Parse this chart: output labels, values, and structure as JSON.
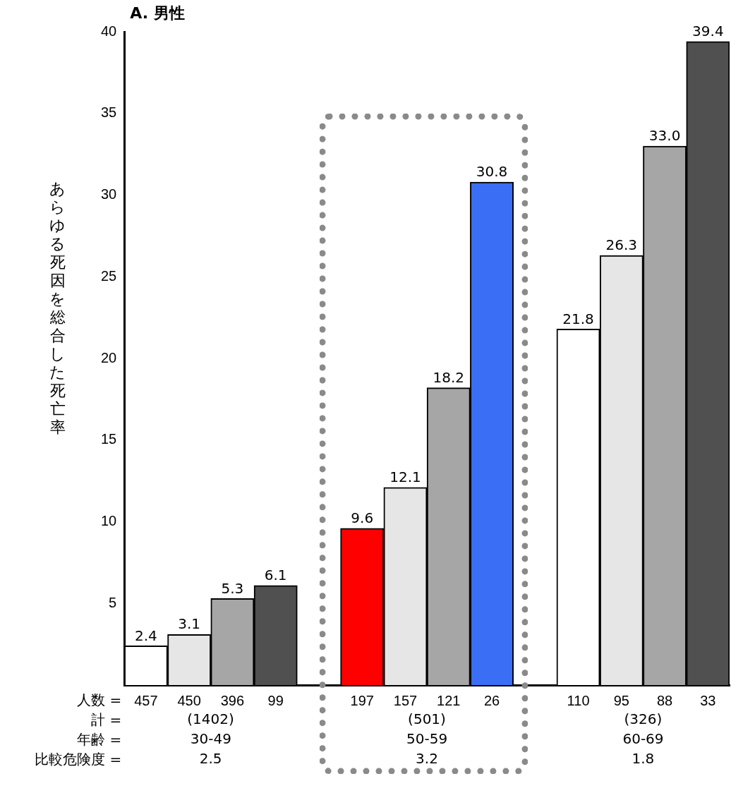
{
  "chart_data": {
    "type": "bar",
    "title": "A. 男性",
    "ylabel": "あらゆる死因を総合した死亡率",
    "categories": [
      "457",
      "450",
      "396",
      "99",
      null,
      "197",
      "157",
      "121",
      "26",
      null,
      "110",
      "95",
      "88",
      "33"
    ],
    "values": [
      2.4,
      3.1,
      5.3,
      6.1,
      null,
      9.6,
      12.1,
      18.2,
      30.8,
      null,
      21.8,
      26.3,
      33.0,
      39.4
    ],
    "value_labels": [
      "2.4",
      "3.1",
      "5.3",
      "6.1",
      null,
      "9.6",
      "12.1",
      "18.2",
      "30.8",
      null,
      "21.8",
      "26.3",
      "33.0",
      "39.4"
    ],
    "colors": [
      "#ffffff",
      "#e6e6e6",
      "#a6a6a6",
      "#505050",
      "#ffffff",
      "#ff0000",
      "#e6e6e6",
      "#a6a6a6",
      "#3a6ff5",
      "#ffffff",
      "#ffffff",
      "#e6e6e6",
      "#a6a6a6",
      "#505050"
    ],
    "ylim": [
      0,
      40
    ],
    "yticks": [
      5,
      10,
      15,
      20,
      25,
      30,
      35,
      40
    ],
    "annotations": [
      "人数 =",
      "計 =",
      "年齢 =",
      "比較危険度 =",
      "(1402)",
      "30-49",
      "2.5",
      "(501)",
      "50-59",
      "3.2",
      "(326)",
      "60-69",
      "1.8"
    ]
  }
}
